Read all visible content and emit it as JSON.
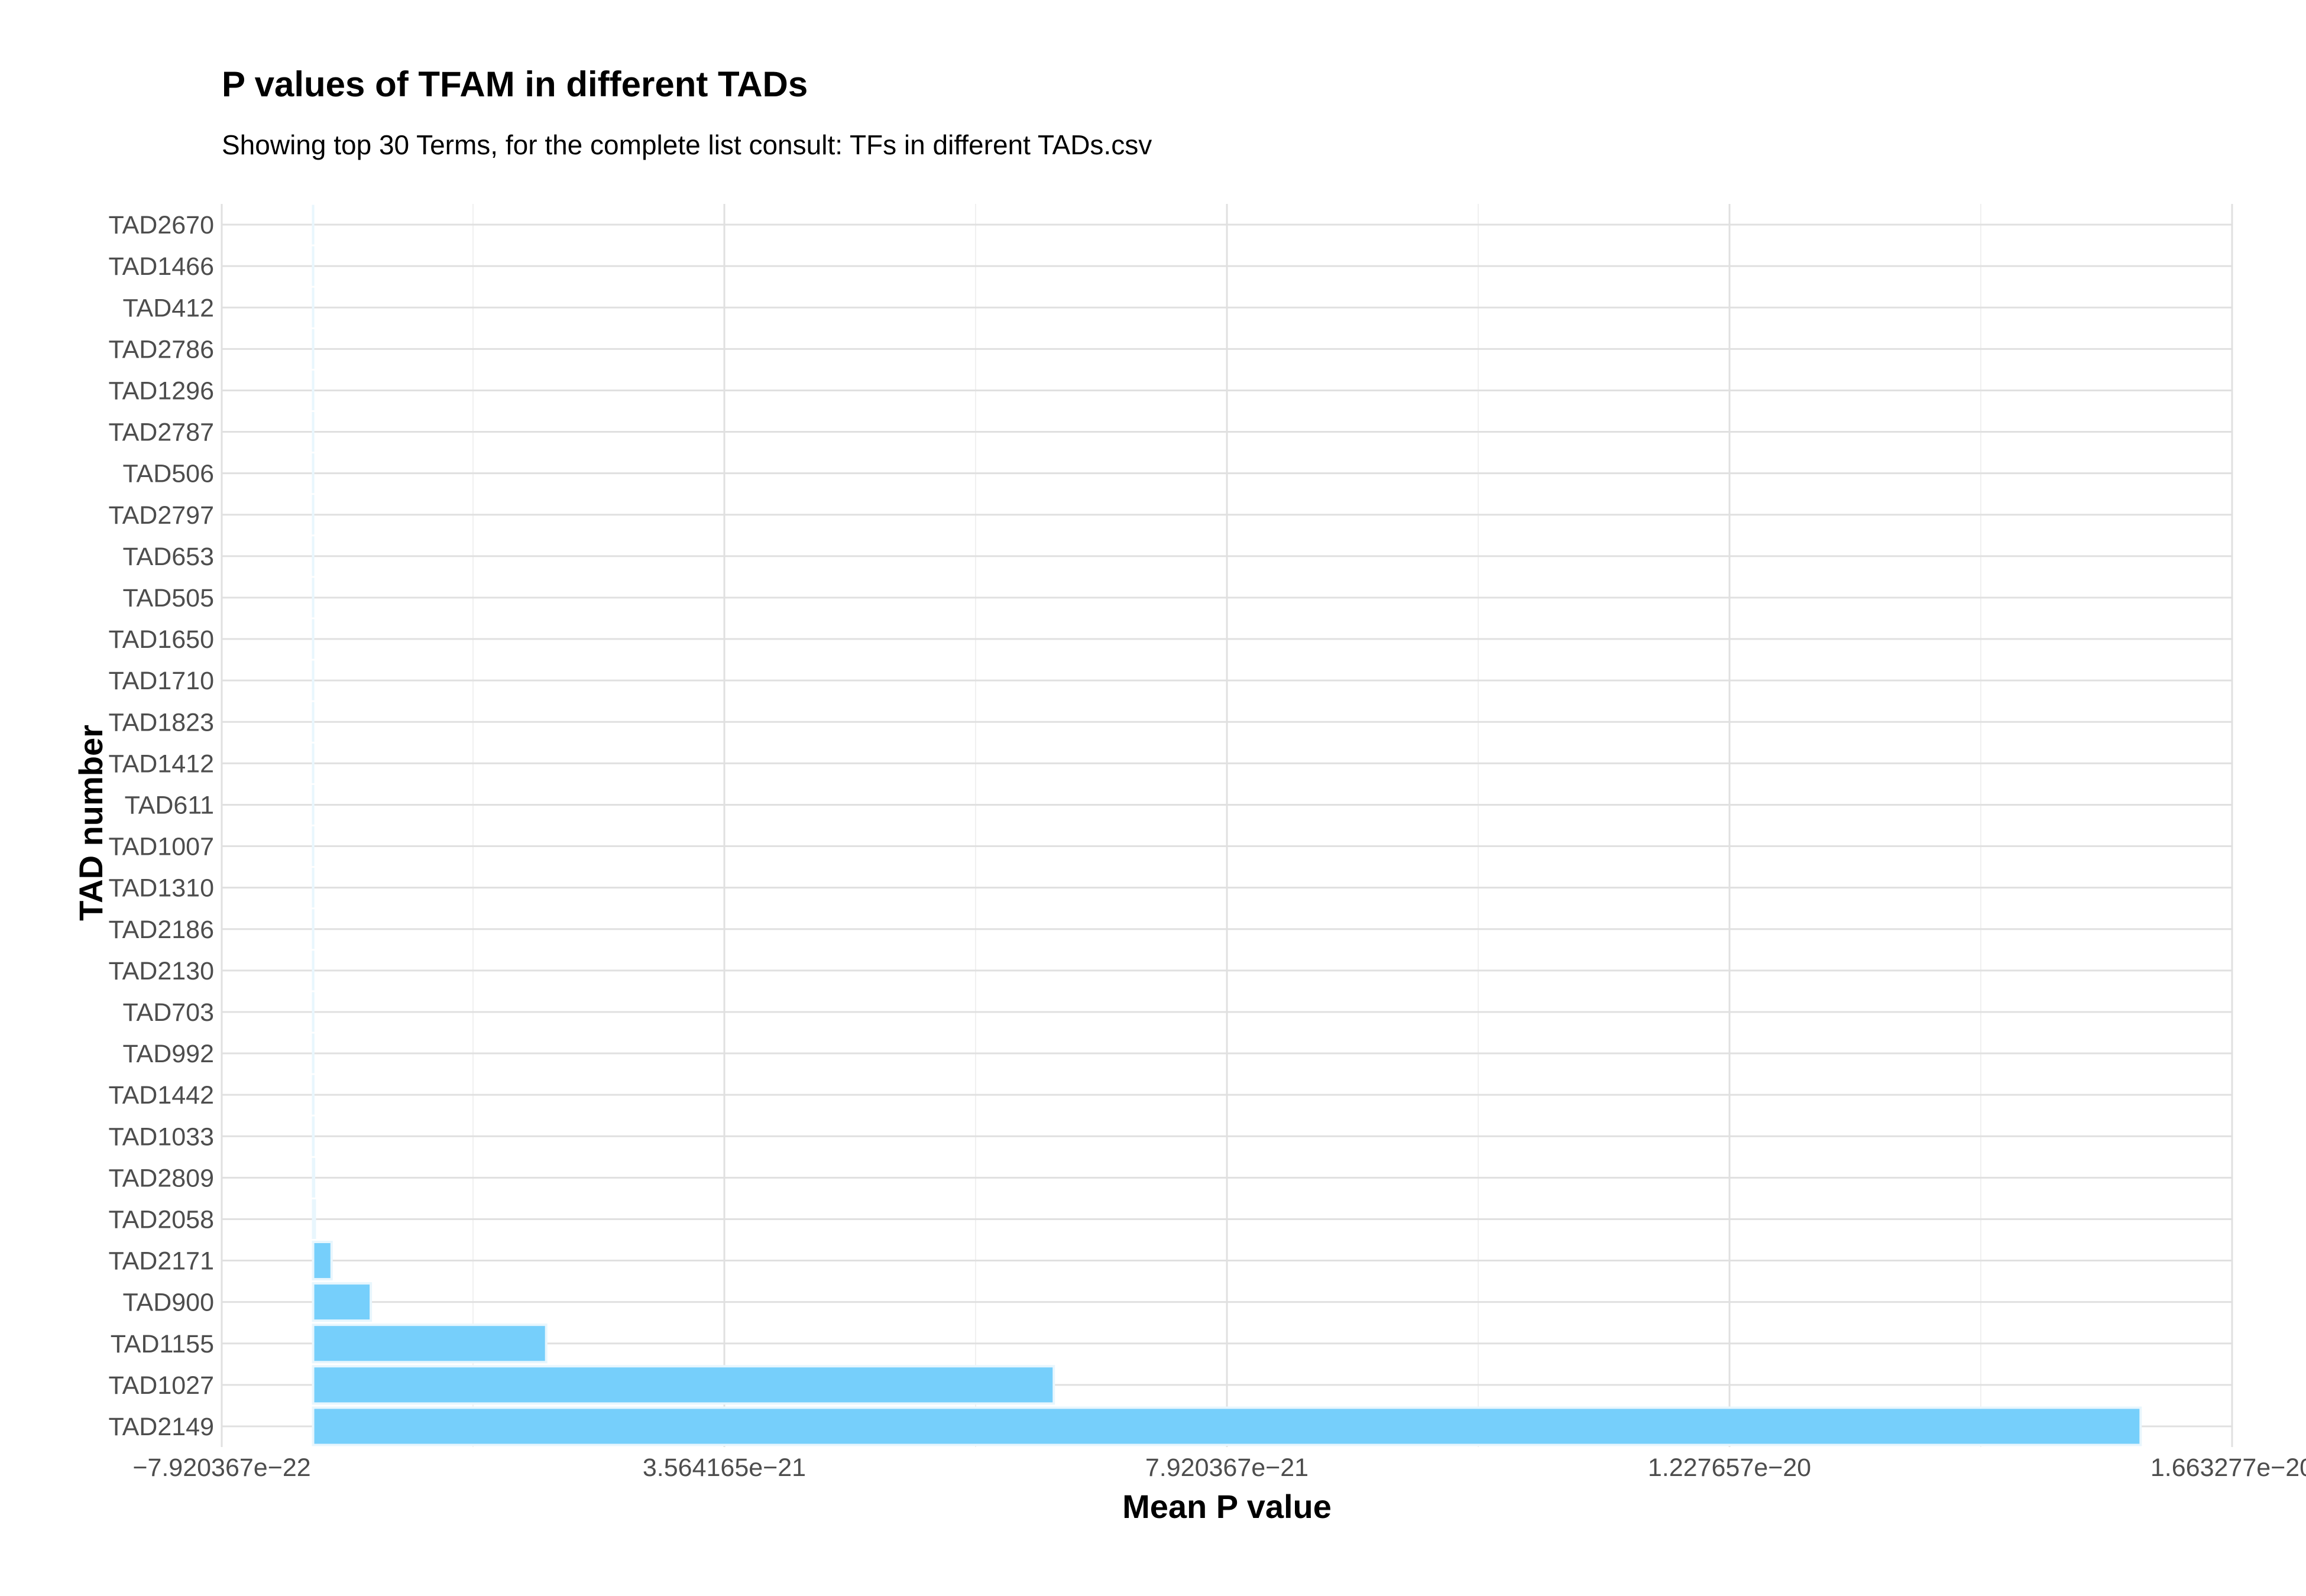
{
  "chart_data": {
    "type": "bar",
    "orientation": "horizontal",
    "title": "P values of TFAM in different TADs",
    "subtitle": "Showing top 30 Terms, for the complete list consult: TFs in different TADs.csv",
    "xlabel": "Mean P value",
    "ylabel": "TAD number",
    "categories": [
      "TAD2149",
      "TAD1027",
      "TAD1155",
      "TAD900",
      "TAD2171",
      "TAD2058",
      "TAD2809",
      "TAD1033",
      "TAD1442",
      "TAD992",
      "TAD703",
      "TAD2130",
      "TAD2186",
      "TAD1310",
      "TAD1007",
      "TAD611",
      "TAD1412",
      "TAD1823",
      "TAD1710",
      "TAD1650",
      "TAD505",
      "TAD653",
      "TAD2797",
      "TAD506",
      "TAD2787",
      "TAD1296",
      "TAD2786",
      "TAD412",
      "TAD1466",
      "TAD2670"
    ],
    "values": [
      1.584e-20,
      6.42e-21,
      2.02e-21,
      5e-22,
      1.6e-22,
      1.5e-23,
      8e-24,
      3e-24,
      2e-24,
      1.5e-24,
      1e-24,
      8e-25,
      6e-25,
      5e-25,
      4e-25,
      3e-25,
      2.5e-25,
      2e-25,
      1.5e-25,
      1.2e-25,
      1e-25,
      8e-26,
      6e-26,
      5e-26,
      4e-26,
      3e-26,
      2e-26,
      1.5e-26,
      1e-26,
      5e-27
    ],
    "xlim": [
      -7.920367e-22,
      1.663277e-20
    ],
    "xticks": [
      -7.920367e-22,
      3.564165e-21,
      7.920367e-21,
      1.227657e-20,
      1.663277e-20
    ],
    "xtick_labels": [
      "−7.920367e−22",
      "3.564165e−21",
      "7.920367e−21",
      "1.227657e−20",
      "1.663277e−20"
    ],
    "bar_color": "#76CFFB",
    "bar_edge_color": "#e8f6fd",
    "grid": true,
    "legend": "none"
  }
}
